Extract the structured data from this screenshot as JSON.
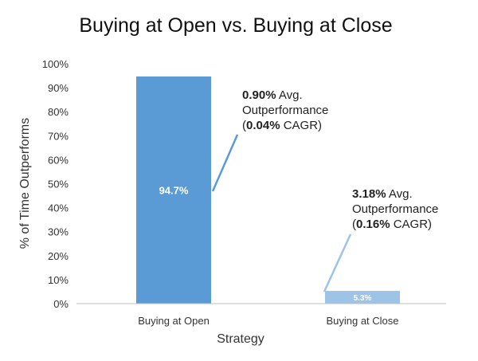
{
  "chart_data": {
    "type": "bar",
    "title": "Buying at Open vs. Buying at Close",
    "xlabel": "Strategy",
    "ylabel": "% of Time Outperforms",
    "categories": [
      "Buying at Open",
      "Buying at Close"
    ],
    "values": [
      94.7,
      5.3
    ],
    "data_labels": [
      "94.7%",
      "5.3%"
    ],
    "ylim": [
      0,
      100
    ],
    "yticks": [
      "0%",
      "10%",
      "20%",
      "30%",
      "40%",
      "50%",
      "60%",
      "70%",
      "80%",
      "90%",
      "100%"
    ],
    "colors": [
      "#5b9bd5",
      "#9dc3e6"
    ],
    "grid": false,
    "legend": "none",
    "annotations": [
      {
        "lines": [
          {
            "bold": "0.90%",
            "rest": " Avg."
          },
          {
            "bold": "",
            "rest": "Outperformance"
          },
          {
            "pre": "(",
            "bold": "0.04%",
            "rest": " CAGR)"
          }
        ]
      },
      {
        "lines": [
          {
            "bold": "3.18%",
            "rest": " Avg."
          },
          {
            "bold": "",
            "rest": "Outperformance"
          },
          {
            "pre": "(",
            "bold": "0.16%",
            "rest": " CAGR)"
          }
        ]
      }
    ]
  }
}
